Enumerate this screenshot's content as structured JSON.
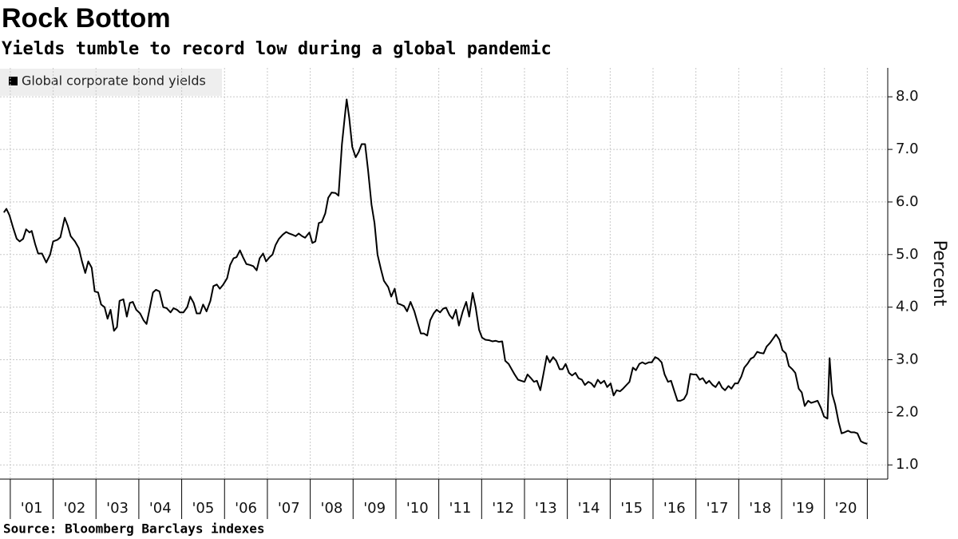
{
  "chart_data": {
    "type": "line",
    "title": "Rock Bottom",
    "subtitle": "Yields tumble to record low during a global pandemic",
    "ylabel": "Percent",
    "source": "Source:  Bloomberg Barclays indexes",
    "grid": true,
    "legend": "top-left",
    "xlim": [
      2000.76,
      2021.44
    ],
    "ylim": [
      0.73,
      8.55
    ],
    "yticks": [
      {
        "value": 1,
        "label": "1.0"
      },
      {
        "value": 2,
        "label": "2.0"
      },
      {
        "value": 3,
        "label": "3.0"
      },
      {
        "value": 4,
        "label": "4.0"
      },
      {
        "value": 5,
        "label": "5.0"
      },
      {
        "value": 6,
        "label": "6.0"
      },
      {
        "value": 7,
        "label": "7.0"
      },
      {
        "value": 8,
        "label": "8.0"
      }
    ],
    "xticks": [
      {
        "value": 2001.5,
        "label": "'01"
      },
      {
        "value": 2002.5,
        "label": "'02"
      },
      {
        "value": 2003.5,
        "label": "'03"
      },
      {
        "value": 2004.5,
        "label": "'04"
      },
      {
        "value": 2005.5,
        "label": "'05"
      },
      {
        "value": 2006.5,
        "label": "'06"
      },
      {
        "value": 2007.5,
        "label": "'07"
      },
      {
        "value": 2008.5,
        "label": "'08"
      },
      {
        "value": 2009.5,
        "label": "'09"
      },
      {
        "value": 2010.5,
        "label": "'10"
      },
      {
        "value": 2011.5,
        "label": "'11"
      },
      {
        "value": 2012.5,
        "label": "'12"
      },
      {
        "value": 2013.5,
        "label": "'13"
      },
      {
        "value": 2014.5,
        "label": "'14"
      },
      {
        "value": 2015.5,
        "label": "'15"
      },
      {
        "value": 2016.5,
        "label": "'16"
      },
      {
        "value": 2017.5,
        "label": "'17"
      },
      {
        "value": 2018.5,
        "label": "'18"
      },
      {
        "value": 2019.5,
        "label": "'19"
      },
      {
        "value": 2020.5,
        "label": "'20"
      }
    ],
    "x": [
      2000.85,
      2000.91,
      2000.98,
      2001.07,
      2001.15,
      2001.22,
      2001.3,
      2001.37,
      2001.45,
      2001.5,
      2001.58,
      2001.65,
      2001.74,
      2001.84,
      2001.93,
      2002.0,
      2002.1,
      2002.17,
      2002.27,
      2002.34,
      2002.41,
      2002.51,
      2002.6,
      2002.67,
      2002.75,
      2002.82,
      2002.9,
      2002.97,
      2003.05,
      2003.12,
      2003.2,
      2003.27,
      2003.34,
      2003.42,
      2003.49,
      2003.55,
      2003.64,
      2003.72,
      2003.79,
      2003.86,
      2003.94,
      2004.03,
      2004.11,
      2004.18,
      2004.26,
      2004.33,
      2004.4,
      2004.48,
      2004.57,
      2004.65,
      2004.74,
      2004.81,
      2004.89,
      2004.96,
      2005.04,
      2005.13,
      2005.2,
      2005.28,
      2005.35,
      2005.43,
      2005.5,
      2005.58,
      2005.67,
      2005.74,
      2005.82,
      2005.89,
      2005.97,
      2006.06,
      2006.13,
      2006.21,
      2006.28,
      2006.36,
      2006.43,
      2006.51,
      2006.6,
      2006.67,
      2006.75,
      2006.82,
      2006.9,
      2006.97,
      2007.05,
      2007.12,
      2007.19,
      2007.27,
      2007.36,
      2007.44,
      2007.51,
      2007.58,
      2007.66,
      2007.73,
      2007.81,
      2007.88,
      2007.98,
      2008.05,
      2008.12,
      2008.2,
      2008.27,
      2008.35,
      2008.42,
      2008.5,
      2008.59,
      2008.66,
      2008.74,
      2008.81,
      2008.85,
      2008.91,
      2008.98,
      2009.06,
      2009.13,
      2009.2,
      2009.28,
      2009.35,
      2009.43,
      2009.5,
      2009.57,
      2009.65,
      2009.72,
      2009.82,
      2009.89,
      2009.97,
      2010.04,
      2010.11,
      2010.19,
      2010.26,
      2010.34,
      2010.43,
      2010.5,
      2010.58,
      2010.65,
      2010.73,
      2010.8,
      2010.88,
      2010.95,
      2011.03,
      2011.1,
      2011.17,
      2011.25,
      2011.32,
      2011.4,
      2011.47,
      2011.56,
      2011.64,
      2011.71,
      2011.79,
      2011.86,
      2011.94,
      2012.01,
      2012.09,
      2012.18,
      2012.25,
      2012.33,
      2012.4,
      2012.48,
      2012.55,
      2012.63,
      2012.7,
      2012.77,
      2012.85,
      2012.92,
      2013.0,
      2013.07,
      2013.15,
      2013.22,
      2013.29,
      2013.37,
      2013.44,
      2013.52,
      2013.59,
      2013.67,
      2013.74,
      2013.82,
      2013.89,
      2013.96,
      2014.04,
      2014.11,
      2014.19,
      2014.26,
      2014.34,
      2014.41,
      2014.49,
      2014.56,
      2014.63,
      2014.71,
      2014.78,
      2014.86,
      2014.93,
      2015.01,
      2015.08,
      2015.15,
      2015.23,
      2015.3,
      2015.38,
      2015.45,
      2015.53,
      2015.6,
      2015.68,
      2015.75,
      2015.82,
      2015.9,
      2015.97,
      2016.05,
      2016.12,
      2016.2,
      2016.27,
      2016.35,
      2016.42,
      2016.49,
      2016.57,
      2016.64,
      2016.72,
      2016.79,
      2016.87,
      2016.94,
      2017.01,
      2017.09,
      2017.16,
      2017.24,
      2017.31,
      2017.39,
      2017.46,
      2017.54,
      2017.61,
      2017.68,
      2017.76,
      2017.83,
      2017.91,
      2017.98,
      2018.06,
      2018.13,
      2018.21,
      2018.28,
      2018.35,
      2018.43,
      2018.5,
      2018.58,
      2018.65,
      2018.73,
      2018.8,
      2018.87,
      2018.95,
      2019.02,
      2019.1,
      2019.17,
      2019.25,
      2019.32,
      2019.4,
      2019.47,
      2019.54,
      2019.62,
      2019.69,
      2019.77,
      2019.84,
      2019.92,
      2019.99,
      2020.07,
      2020.12,
      2020.18,
      2020.25,
      2020.33,
      2020.4,
      2020.47,
      2020.55,
      2020.62,
      2020.7,
      2020.77,
      2020.85,
      2020.92,
      2021.0
    ],
    "series": [
      {
        "name": "Global corporate bond yields",
        "color": "#000000",
        "values": [
          5.8,
          5.87,
          5.75,
          5.5,
          5.3,
          5.25,
          5.3,
          5.48,
          5.42,
          5.45,
          5.2,
          5.02,
          5.02,
          4.85,
          5.0,
          5.25,
          5.28,
          5.33,
          5.7,
          5.55,
          5.35,
          5.25,
          5.12,
          4.88,
          4.65,
          4.87,
          4.75,
          4.3,
          4.28,
          4.05,
          4.0,
          3.78,
          3.95,
          3.55,
          3.62,
          4.12,
          4.15,
          3.82,
          4.08,
          4.1,
          3.95,
          3.88,
          3.75,
          3.68,
          4.0,
          4.28,
          4.33,
          4.3,
          4.0,
          3.98,
          3.9,
          3.98,
          3.95,
          3.9,
          3.9,
          4.0,
          4.2,
          4.08,
          3.88,
          3.88,
          4.05,
          3.92,
          4.12,
          4.4,
          4.43,
          4.35,
          4.43,
          4.55,
          4.8,
          4.93,
          4.95,
          5.08,
          4.95,
          4.82,
          4.8,
          4.78,
          4.7,
          4.93,
          5.02,
          4.87,
          4.95,
          5.0,
          5.18,
          5.3,
          5.38,
          5.43,
          5.4,
          5.38,
          5.35,
          5.4,
          5.35,
          5.32,
          5.42,
          5.22,
          5.25,
          5.6,
          5.62,
          5.78,
          6.08,
          6.18,
          6.17,
          6.12,
          7.1,
          7.65,
          7.95,
          7.6,
          7.05,
          6.85,
          6.95,
          7.1,
          7.1,
          6.6,
          5.95,
          5.6,
          5.0,
          4.72,
          4.5,
          4.38,
          4.2,
          4.35,
          4.07,
          4.05,
          4.02,
          3.92,
          4.1,
          3.92,
          3.72,
          3.5,
          3.5,
          3.46,
          3.75,
          3.88,
          3.95,
          3.9,
          3.97,
          3.99,
          3.85,
          3.78,
          3.95,
          3.65,
          3.92,
          4.1,
          3.82,
          4.27,
          4.0,
          3.57,
          3.42,
          3.38,
          3.37,
          3.35,
          3.36,
          3.34,
          3.35,
          2.98,
          2.92,
          2.82,
          2.72,
          2.62,
          2.6,
          2.58,
          2.72,
          2.65,
          2.58,
          2.6,
          2.42,
          2.72,
          3.07,
          2.95,
          3.05,
          2.98,
          2.82,
          2.82,
          2.92,
          2.75,
          2.7,
          2.75,
          2.65,
          2.62,
          2.52,
          2.58,
          2.55,
          2.48,
          2.62,
          2.55,
          2.6,
          2.48,
          2.55,
          2.32,
          2.42,
          2.4,
          2.45,
          2.52,
          2.58,
          2.85,
          2.8,
          2.92,
          2.95,
          2.92,
          2.95,
          2.95,
          3.05,
          3.02,
          2.95,
          2.72,
          2.58,
          2.6,
          2.42,
          2.22,
          2.22,
          2.25,
          2.35,
          2.73,
          2.72,
          2.72,
          2.62,
          2.65,
          2.55,
          2.6,
          2.52,
          2.48,
          2.58,
          2.47,
          2.42,
          2.5,
          2.45,
          2.55,
          2.55,
          2.68,
          2.85,
          2.93,
          3.02,
          3.05,
          3.15,
          3.13,
          3.12,
          3.25,
          3.32,
          3.4,
          3.48,
          3.38,
          3.18,
          3.12,
          2.88,
          2.82,
          2.75,
          2.45,
          2.38,
          2.12,
          2.22,
          2.18,
          2.2,
          2.22,
          2.08,
          1.92,
          1.88,
          3.03,
          2.35,
          2.15,
          1.82,
          1.6,
          1.62,
          1.65,
          1.62,
          1.62,
          1.6,
          1.45,
          1.42,
          1.4
        ]
      }
    ]
  }
}
